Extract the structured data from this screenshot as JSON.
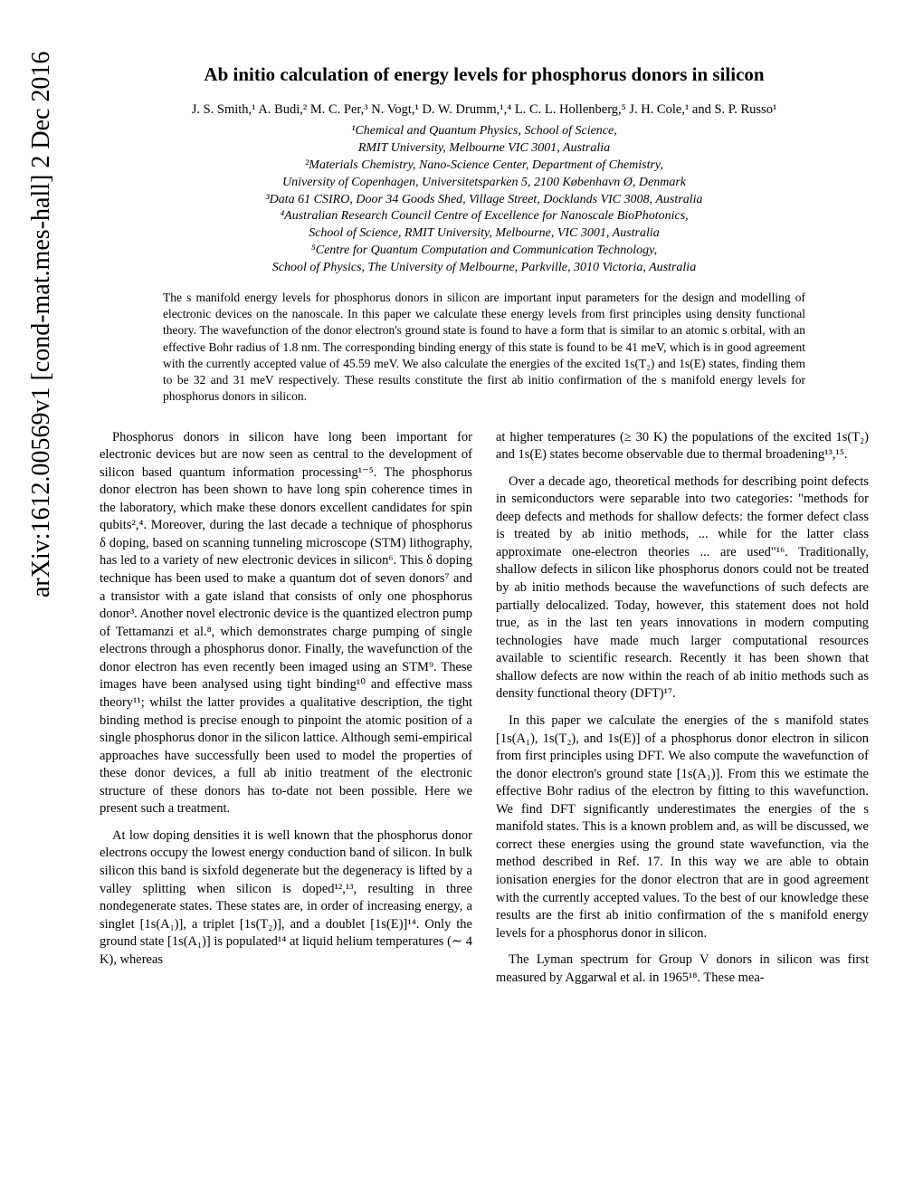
{
  "arxiv": "arXiv:1612.00569v1  [cond-mat.mes-hall]  2 Dec 2016",
  "title": "Ab initio calculation of energy levels for phosphorus donors in silicon",
  "authors": "J. S. Smith,¹ A. Budi,² M. C. Per,³ N. Vogt,¹ D. W. Drumm,¹,⁴ L. C. L. Hollenberg,⁵ J. H. Cole,¹ and S. P. Russo¹",
  "affiliations": {
    "a1": "¹Chemical and Quantum Physics, School of Science,",
    "a1b": "RMIT University, Melbourne VIC 3001, Australia",
    "a2": "²Materials Chemistry, Nano-Science Center, Department of Chemistry,",
    "a2b": "University of Copenhagen, Universitetsparken 5, 2100 København Ø, Denmark",
    "a3": "³Data 61 CSIRO, Door 34 Goods Shed, Village Street, Docklands VIC 3008, Australia",
    "a4": "⁴Australian Research Council Centre of Excellence for Nanoscale BioPhotonics,",
    "a4b": "School of Science, RMIT University, Melbourne, VIC 3001, Australia",
    "a5": "⁵Centre for Quantum Computation and Communication Technology,",
    "a5b": "School of Physics, The University of Melbourne, Parkville, 3010 Victoria, Australia"
  },
  "abstract": "The s manifold energy levels for phosphorus donors in silicon are important input parameters for the design and modelling of electronic devices on the nanoscale. In this paper we calculate these energy levels from first principles using density functional theory. The wavefunction of the donor electron's ground state is found to have a form that is similar to an atomic s orbital, with an effective Bohr radius of 1.8 nm. The corresponding binding energy of this state is found to be 41 meV, which is in good agreement with the currently accepted value of 45.59 meV. We also calculate the energies of the excited 1s(T₂) and 1s(E) states, finding them to be 32 and 31 meV respectively. These results constitute the first ab initio confirmation of the s manifold energy levels for phosphorus donors in silicon.",
  "body": {
    "left": {
      "p1": "Phosphorus donors in silicon have long been important for electronic devices but are now seen as central to the development of silicon based quantum information processing¹⁻⁵. The phosphorus donor electron has been shown to have long spin coherence times in the laboratory, which make these donors excellent candidates for spin qubits²,⁴. Moreover, during the last decade a technique of phosphorus δ doping, based on scanning tunneling microscope (STM) lithography, has led to a variety of new electronic devices in silicon⁶. This δ doping technique has been used to make a quantum dot of seven donors⁷ and a transistor with a gate island that consists of only one phosphorus donor³. Another novel electronic device is the quantized electron pump of Tettamanzi et al.⁸, which demonstrates charge pumping of single electrons through a phosphorus donor. Finally, the wavefunction of the donor electron has even recently been imaged using an STM⁹. These images have been analysed using tight binding¹⁰ and effective mass theory¹¹; whilst the latter provides a qualitative description, the tight binding method is precise enough to pinpoint the atomic position of a single phosphorus donor in the silicon lattice. Although semi-empirical approaches have successfully been used to model the properties of these donor devices, a full ab initio treatment of the electronic structure of these donors has to-date not been possible. Here we present such a treatment.",
      "p2": "At low doping densities it is well known that the phosphorus donor electrons occupy the lowest energy conduction band of silicon. In bulk silicon this band is sixfold degenerate but the degeneracy is lifted by a valley splitting when silicon is doped¹²,¹³, resulting in three nondegenerate states. These states are, in order of increasing energy, a singlet [1s(A₁)], a triplet [1s(T₂)], and a doublet [1s(E)]¹⁴. Only the ground state [1s(A₁)] is populated¹⁴ at liquid helium temperatures (∼ 4 K), whereas"
    },
    "right": {
      "p1": "at higher temperatures (≥ 30 K) the populations of the excited 1s(T₂) and 1s(E) states become observable due to thermal broadening¹³,¹⁵.",
      "p2": "Over a decade ago, theoretical methods for describing point defects in semiconductors were separable into two categories: \"methods for deep defects and methods for shallow defects: the former defect class is treated by ab initio methods, ... while for the latter class approximate one-electron theories ... are used\"¹⁶. Traditionally, shallow defects in silicon like phosphorus donors could not be treated by ab initio methods because the wavefunctions of such defects are partially delocalized. Today, however, this statement does not hold true, as in the last ten years innovations in modern computing technologies have made much larger computational resources available to scientific research. Recently it has been shown that shallow defects are now within the reach of ab initio methods such as density functional theory (DFT)¹⁷.",
      "p3": "In this paper we calculate the energies of the s manifold states [1s(A₁), 1s(T₂), and 1s(E)] of a phosphorus donor electron in silicon from first principles using DFT. We also compute the wavefunction of the donor electron's ground state [1s(A₁)]. From this we estimate the effective Bohr radius of the electron by fitting to this wavefunction. We find DFT significantly underestimates the energies of the s manifold states. This is a known problem and, as will be discussed, we correct these energies using the ground state wavefunction, via the method described in Ref. 17. In this way we are able to obtain ionisation energies for the donor electron that are in good agreement with the currently accepted values. To the best of our knowledge these results are the first ab initio confirmation of the s manifold energy levels for a phosphorus donor in silicon.",
      "p4": "The Lyman spectrum for Group V donors in silicon was first measured by Aggarwal et al. in 1965¹⁸. These mea-"
    }
  }
}
